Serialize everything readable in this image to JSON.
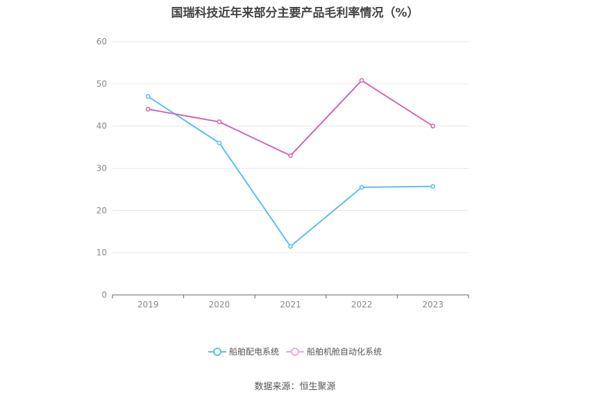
{
  "chart_data": {
    "type": "line",
    "title": "国瑞科技近年来部分主要产品毛利率情况（%）",
    "x": [
      "2019",
      "2020",
      "2021",
      "2022",
      "2023"
    ],
    "series": [
      {
        "name": "船舶配电系统",
        "color": "#5bc0eb",
        "values": [
          47,
          36,
          11.5,
          25.5,
          25.7
        ]
      },
      {
        "name": "船舶机舱自动化系统",
        "color": "#cf6aac",
        "values": [
          44,
          41,
          33,
          50.8,
          40
        ]
      }
    ],
    "yticks": [
      0,
      10,
      20,
      30,
      40,
      50,
      60
    ],
    "ylim": [
      0,
      60
    ],
    "grid": true,
    "legend": "bottom-center",
    "legend_marker_colors": [
      "#5bc0eb",
      "#f0a8d8"
    ]
  },
  "source": "数据来源：恒生聚源"
}
